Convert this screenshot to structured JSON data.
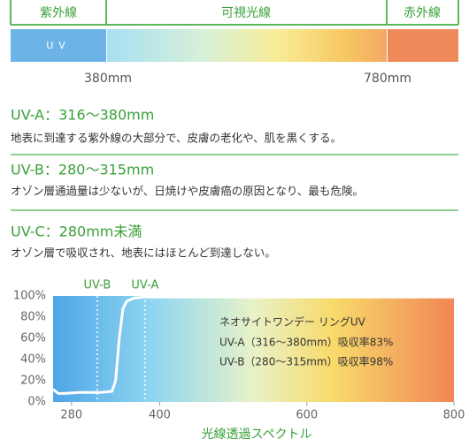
{
  "spectrum": {
    "bands": [
      "紫外線",
      "可視光線",
      "赤外線"
    ],
    "uv_label": "UV",
    "edges": [
      "380mm",
      "780mm"
    ]
  },
  "descriptions": [
    {
      "heading": "UV-A：316〜380mm",
      "text": "地表に到達する紫外線の大部分で、皮膚の老化や、肌を黒くする。"
    },
    {
      "heading": "UV-B：280〜315mm",
      "text": "オゾン層通過量は少ないが、日焼けや皮膚癌の原因となり、最も危険。"
    },
    {
      "heading": "UV-C：280mm未満",
      "text": "オゾン層で吸収され、地表にはほとんど到達しない。"
    }
  ],
  "chart_data": {
    "type": "line",
    "x_label": "光線透過スペクトル",
    "x": [
      255,
      262,
      270,
      290,
      320,
      335,
      340,
      345,
      350,
      355,
      365,
      380,
      400,
      500,
      600,
      700,
      800
    ],
    "series": [
      {
        "name": "ネオサイトワンデー リングUV",
        "color": "#ffffff",
        "values": [
          12,
          8,
          8,
          9,
          9,
          10,
          20,
          60,
          88,
          95,
          98,
          99,
          99,
          99,
          99,
          99,
          99
        ]
      }
    ],
    "annotations": [
      "UV-A（316〜380mm）吸収率83%",
      "UV-B（280〜315mm）吸収率98%"
    ],
    "markers": [
      {
        "label": "UV-B",
        "x": 315
      },
      {
        "label": "UV-A",
        "x": 380
      }
    ],
    "xlim": [
      255,
      800
    ],
    "xticks": [
      280,
      400,
      600,
      800
    ],
    "ylim": [
      0,
      100
    ],
    "yticks": [
      {
        "value": 0,
        "label": "0%"
      },
      {
        "value": 20,
        "label": "20%"
      },
      {
        "value": 40,
        "label": "40%"
      },
      {
        "value": 60,
        "label": "60%"
      },
      {
        "value": 80,
        "label": "80%"
      },
      {
        "value": 100,
        "label": "100%"
      }
    ]
  }
}
